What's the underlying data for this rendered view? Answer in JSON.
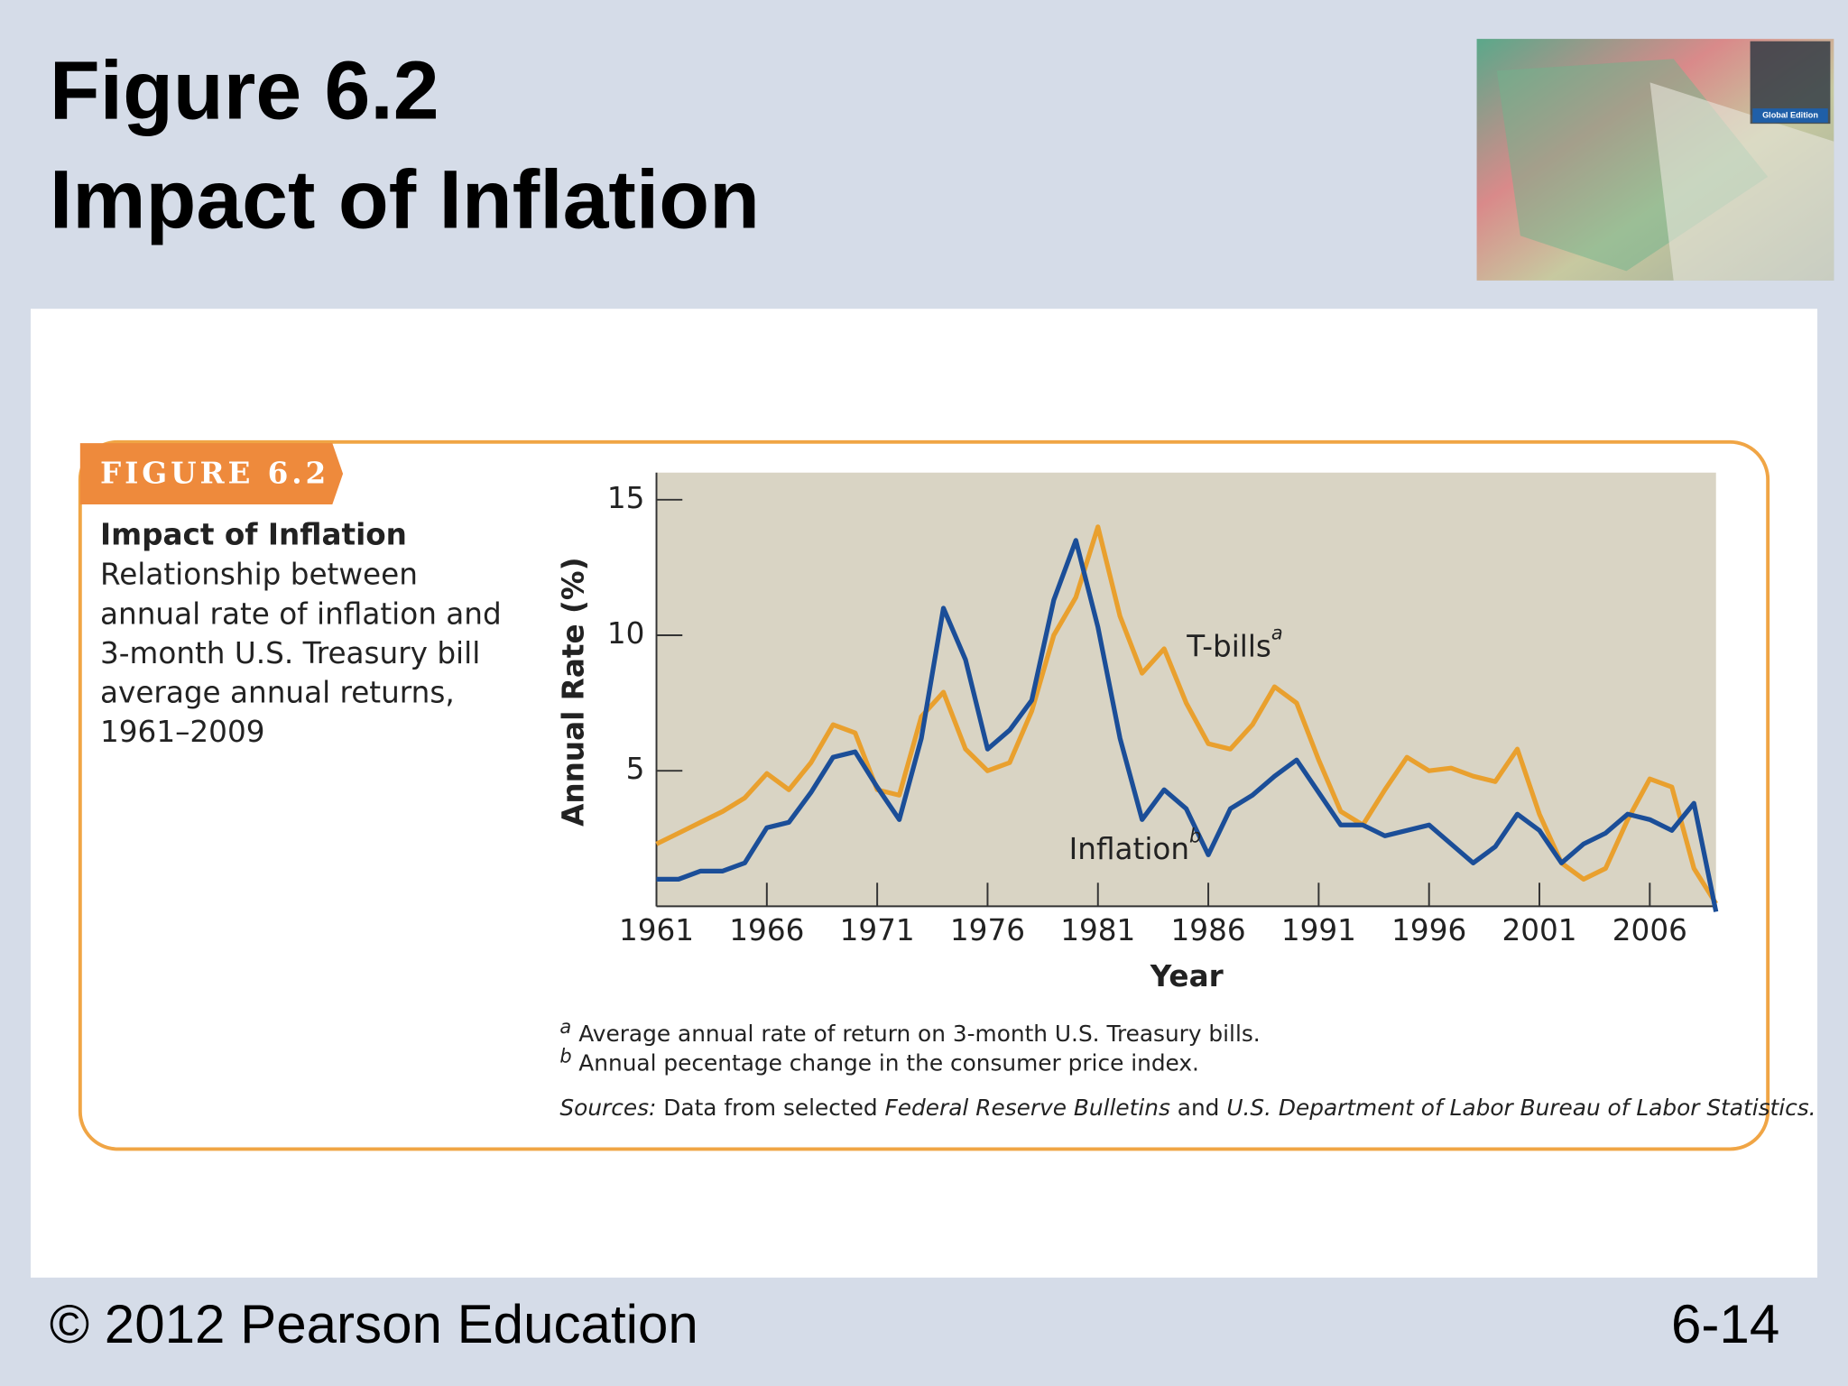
{
  "slide": {
    "title_lines": [
      "Figure 6.2",
      "Impact of Inflation"
    ],
    "image_caption": "Global Edition",
    "footer_left": "© 2012 Pearson Education",
    "footer_right": "6-14"
  },
  "figure": {
    "badge": "FIGURE 6.2",
    "heading": "Impact of Inflation",
    "description_lines": [
      "Relationship between",
      "annual rate of inflation and",
      "3-month U.S. Treasury bill",
      "average annual returns,",
      "1961–2009"
    ],
    "footnotes": [
      {
        "mark": "a",
        "text": "Average annual rate of return on 3-month U.S. Treasury bills."
      },
      {
        "mark": "b",
        "text": "Annual pecentage change in the consumer price index."
      }
    ],
    "sources": [
      "Sources:",
      " Data from selected ",
      "Federal Reserve Bulletins",
      " and ",
      "U.S. Department of Labor Bureau of Labor Statistics."
    ]
  },
  "chart_data": {
    "type": "line",
    "x_label": "Year",
    "y_label": "Annual Rate (%)",
    "x": [
      1961,
      1962,
      1963,
      1964,
      1965,
      1966,
      1967,
      1968,
      1969,
      1970,
      1971,
      1972,
      1973,
      1974,
      1975,
      1976,
      1977,
      1978,
      1979,
      1980,
      1981,
      1982,
      1983,
      1984,
      1985,
      1986,
      1987,
      1988,
      1989,
      1990,
      1991,
      1992,
      1993,
      1994,
      1995,
      1996,
      1997,
      1998,
      1999,
      2000,
      2001,
      2002,
      2003,
      2004,
      2005,
      2006,
      2007,
      2008,
      2009
    ],
    "xlim": [
      1961,
      2009
    ],
    "xticks": [
      1961,
      1966,
      1971,
      1976,
      1981,
      1986,
      1991,
      1996,
      2001,
      2006
    ],
    "ylim": [
      0,
      16
    ],
    "yticks": [
      5,
      10,
      15
    ],
    "series": [
      {
        "name": "T-bills",
        "superscript": "a",
        "color": "#e9a02e",
        "values": [
          2.3,
          2.7,
          3.1,
          3.5,
          4.0,
          4.9,
          4.3,
          5.3,
          6.7,
          6.4,
          4.3,
          4.1,
          7.0,
          7.9,
          5.8,
          5.0,
          5.3,
          7.2,
          10.0,
          11.4,
          14.0,
          10.7,
          8.6,
          9.5,
          7.5,
          6.0,
          5.8,
          6.7,
          8.1,
          7.5,
          5.4,
          3.5,
          3.0,
          4.3,
          5.5,
          5.0,
          5.1,
          4.8,
          4.6,
          5.8,
          3.4,
          1.6,
          1.0,
          1.4,
          3.2,
          4.7,
          4.4,
          1.4,
          0.1
        ]
      },
      {
        "name": "Inflation",
        "superscript": "b",
        "color": "#1b4e98",
        "values": [
          1.0,
          1.0,
          1.3,
          1.3,
          1.6,
          2.9,
          3.1,
          4.2,
          5.5,
          5.7,
          4.4,
          3.2,
          6.2,
          11.0,
          9.1,
          5.8,
          6.5,
          7.6,
          11.3,
          13.5,
          10.3,
          6.2,
          3.2,
          4.3,
          3.6,
          1.9,
          3.6,
          4.1,
          4.8,
          5.4,
          4.2,
          3.0,
          3.0,
          2.6,
          2.8,
          3.0,
          2.3,
          1.6,
          2.2,
          3.4,
          2.8,
          1.6,
          2.3,
          2.7,
          3.4,
          3.2,
          2.8,
          3.8,
          -0.2
        ]
      }
    ]
  }
}
